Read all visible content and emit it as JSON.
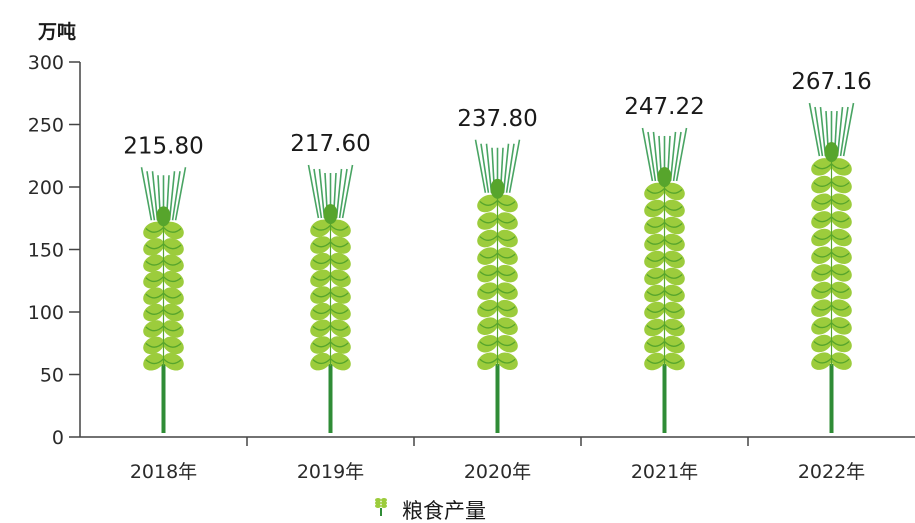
{
  "chart_data": {
    "type": "bar",
    "ylabel": "万吨",
    "categories": [
      "2018年",
      "2019年",
      "2020年",
      "2021年",
      "2022年"
    ],
    "series": [
      {
        "name": "粮食产量",
        "values": [
          215.8,
          217.6,
          237.8,
          247.22,
          267.16
        ]
      }
    ],
    "value_labels": [
      "215.80",
      "217.60",
      "237.80",
      "247.22",
      "267.16"
    ],
    "ylim": [
      0,
      300
    ],
    "yticks": [
      "0",
      "50",
      "100",
      "150",
      "200",
      "250",
      "300"
    ],
    "grid": false,
    "legend_position": "bottom-center",
    "colors": {
      "grain_light": "#9ccc3c",
      "grain_dark": "#57a52c",
      "stem": "#2f8c36",
      "awn": "#49a463",
      "axis": "#444444"
    },
    "bar_icon": "wheat-ear-icon"
  }
}
